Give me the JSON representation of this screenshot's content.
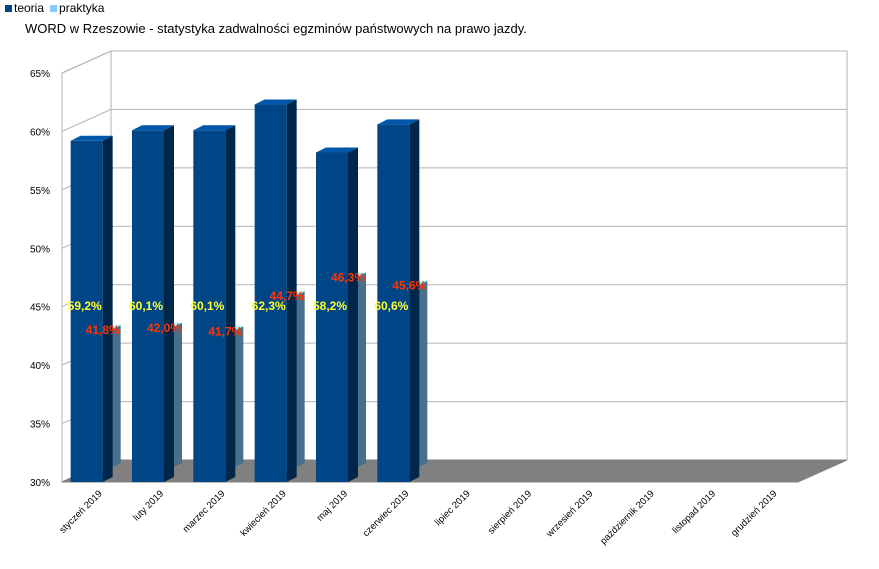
{
  "legend": {
    "teoria": {
      "label": "teoria",
      "color": "#004586"
    },
    "praktyka": {
      "label": "praktyka",
      "color": "#83caff"
    }
  },
  "chart_data": {
    "type": "bar",
    "title": "WORD w Rzeszowie - statystyka zadwalności egzminów państwowych na prawo jazdy.",
    "xlabel": "",
    "ylabel": "",
    "ylim": [
      30,
      65
    ],
    "yticks": [
      "30%",
      "35%",
      "40%",
      "45%",
      "50%",
      "55%",
      "60%",
      "65%"
    ],
    "grid": true,
    "legend_position": "top-left",
    "three_d": true,
    "categories": [
      "styczeń 2019",
      "luty 2019",
      "marzec 2019",
      "kwiecień 2019",
      "maj 2019",
      "czerwiec 2019",
      "lipiec 2019",
      "sierpień 2019",
      "wrzesień 2019",
      "październik 2019",
      "listopad 2019",
      "grudzień 2019"
    ],
    "series": [
      {
        "name": "teoria",
        "color": "#004586",
        "values": [
          59.2,
          60.1,
          60.1,
          62.3,
          58.2,
          60.6,
          null,
          null,
          null,
          null,
          null,
          null
        ],
        "labels": [
          "59,2%",
          "60,1%",
          "60,1%",
          "62,3%",
          "58,2%",
          "60,6%",
          "",
          "",
          "",
          "",
          "",
          ""
        ]
      },
      {
        "name": "praktyka",
        "color": "#83caff",
        "values": [
          41.8,
          42.0,
          41.7,
          44.7,
          46.3,
          45.6,
          null,
          null,
          null,
          null,
          null,
          null
        ],
        "labels": [
          "41,8%",
          "42,0%",
          "41,7%",
          "44,7%",
          "46,3%",
          "45,6%",
          "",
          "",
          "",
          "",
          "",
          ""
        ]
      }
    ]
  }
}
